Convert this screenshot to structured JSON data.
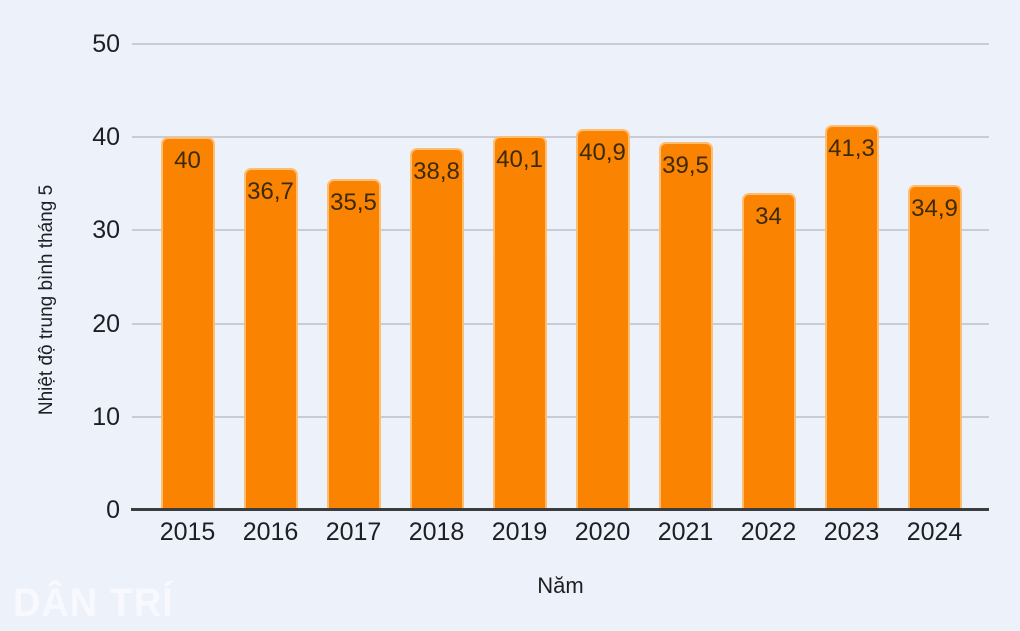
{
  "chart_data": {
    "type": "bar",
    "title": "",
    "categories": [
      "2015",
      "2016",
      "2017",
      "2018",
      "2019",
      "2020",
      "2021",
      "2022",
      "2023",
      "2024"
    ],
    "values": [
      40,
      36.7,
      35.5,
      38.8,
      40.1,
      40.9,
      39.5,
      34,
      41.3,
      34.9
    ],
    "value_labels": [
      "40",
      "36,7",
      "35,5",
      "38,8",
      "40,1",
      "40,9",
      "39,5",
      "34",
      "41,3",
      "34,9"
    ],
    "xlabel": "Năm",
    "ylabel": "Nhiệt độ trung bình tháng 5",
    "ylim": [
      0,
      50
    ],
    "yticks": [
      0,
      10,
      20,
      30,
      40,
      50
    ],
    "grid": "horizontal-only",
    "legend": "none",
    "bar_color": "#fa8301",
    "bar_label_color": "#3c2a08",
    "gridline_color": "#c7ccd6",
    "axis_color": "#3b3c3e",
    "background_color": "#edf1f9"
  },
  "watermark": {
    "text": "DÂN TRÍ"
  }
}
